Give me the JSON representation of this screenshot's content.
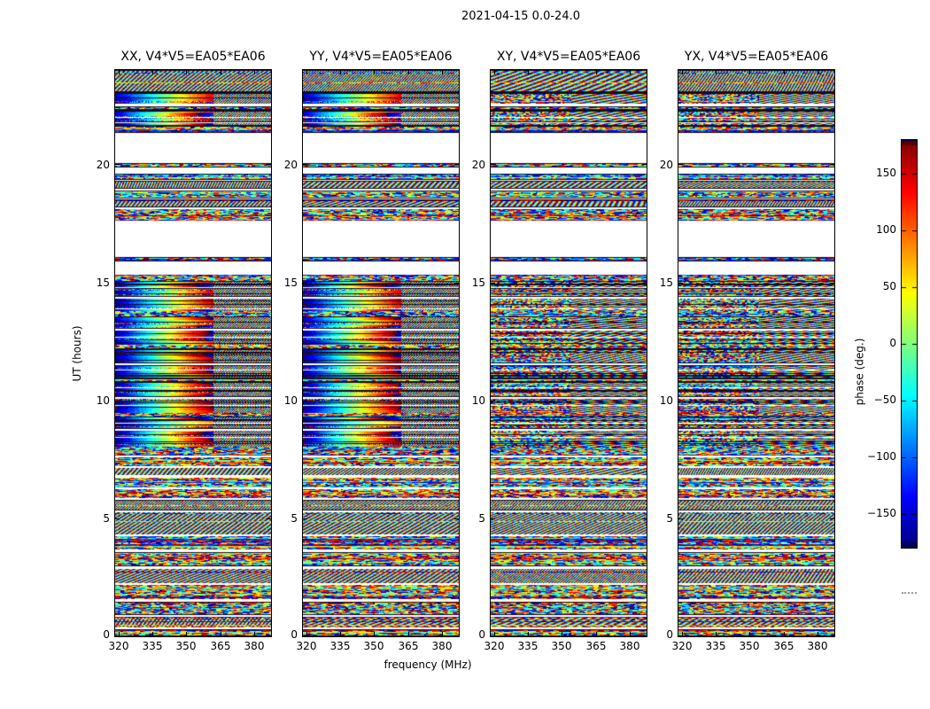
{
  "suptitle": "2021-04-15 0.0-24.0",
  "chart_data": {
    "type": "heatmap",
    "title": "2021-04-15 0.0-24.0",
    "xlabel": "frequency (MHz)",
    "ylabel": "UT (hours)",
    "x_range": [
      318.5,
      387.5
    ],
    "y_range": [
      0,
      24
    ],
    "x_ticks": [
      320,
      335,
      350,
      365,
      380
    ],
    "x_tick_labels": [
      "320",
      "335",
      "350",
      "365",
      "380"
    ],
    "y_ticks": [
      0,
      5,
      10,
      15,
      20
    ],
    "y_tick_labels": [
      "0",
      "5",
      "10",
      "15",
      "20"
    ],
    "grid": false,
    "legend": "colorbar-right",
    "panels": [
      {
        "label": "XX, V4*V5=EA05*EA06",
        "mode": "parallel"
      },
      {
        "label": "YY, V4*V5=EA05*EA06",
        "mode": "parallel"
      },
      {
        "label": "XY, V4*V5=EA05*EA06",
        "mode": "cross"
      },
      {
        "label": "YX, V4*V5=EA05*EA06",
        "mode": "cross"
      }
    ],
    "colorbar": {
      "label": "phase (deg.)",
      "colormap": "jet",
      "range": [
        -180,
        180
      ],
      "ticks": [
        150,
        100,
        50,
        0,
        -50,
        -100,
        -150
      ],
      "tick_labels": [
        "150",
        "100",
        "50",
        "0",
        "−50",
        "−100",
        "−150"
      ]
    },
    "value_units": "deg",
    "smooth_split_mhz": 362,
    "bands": [
      [
        "fringe",
        24.0,
        23.07
      ],
      [
        "dark",
        23.07,
        23.0
      ],
      [
        "smooth",
        23.0,
        22.57
      ],
      [
        "white",
        22.57,
        22.47
      ],
      [
        "noise",
        22.47,
        22.32
      ],
      [
        "dark",
        22.32,
        22.28
      ],
      [
        "smooth",
        22.28,
        21.62
      ],
      [
        "noise",
        21.62,
        21.35
      ],
      [
        "white",
        21.35,
        20.06
      ],
      [
        "noise",
        20.06,
        19.86
      ],
      [
        "white",
        19.86,
        19.62
      ],
      [
        "noise",
        19.62,
        19.36
      ],
      [
        "white",
        19.36,
        19.3
      ],
      [
        "fringe",
        19.3,
        18.97
      ],
      [
        "white",
        18.97,
        18.9
      ],
      [
        "noise",
        18.9,
        18.57
      ],
      [
        "white",
        18.57,
        18.5
      ],
      [
        "fringe",
        18.5,
        18.17
      ],
      [
        "white",
        18.17,
        18.1
      ],
      [
        "noise",
        18.1,
        17.62
      ],
      [
        "white",
        17.62,
        16.06
      ],
      [
        "noise",
        16.06,
        15.9
      ],
      [
        "white",
        15.9,
        15.32
      ],
      [
        "noise",
        15.32,
        15.06
      ],
      [
        "smooth",
        15.06,
        14.37
      ],
      [
        "white",
        14.37,
        14.3
      ],
      [
        "smooth",
        14.3,
        13.77
      ],
      [
        "noise",
        13.77,
        13.57
      ],
      [
        "smooth",
        13.57,
        13.02
      ],
      [
        "white",
        13.02,
        12.95
      ],
      [
        "smooth",
        12.95,
        12.37
      ],
      [
        "noise",
        12.37,
        12.22
      ],
      [
        "smooth",
        12.22,
        11.57
      ],
      [
        "white",
        11.57,
        11.5
      ],
      [
        "smooth",
        11.5,
        10.92
      ],
      [
        "noise",
        10.92,
        10.77
      ],
      [
        "smooth",
        10.77,
        10.14
      ],
      [
        "white",
        10.14,
        10.07
      ],
      [
        "smooth",
        10.07,
        9.47
      ],
      [
        "noise",
        9.47,
        9.32
      ],
      [
        "smooth",
        9.32,
        8.77
      ],
      [
        "white",
        8.77,
        8.7
      ],
      [
        "smooth",
        8.7,
        8.02
      ],
      [
        "noise",
        8.02,
        7.67
      ],
      [
        "white",
        7.67,
        7.57
      ],
      [
        "noise",
        7.57,
        7.22
      ],
      [
        "white",
        7.22,
        7.15
      ],
      [
        "fringe",
        7.15,
        6.82
      ],
      [
        "white",
        6.82,
        6.74
      ],
      [
        "noise",
        6.74,
        6.32
      ],
      [
        "white",
        6.32,
        6.24
      ],
      [
        "noise",
        6.24,
        5.87
      ],
      [
        "white",
        5.87,
        5.77
      ],
      [
        "fringe",
        5.77,
        5.32
      ],
      [
        "white",
        5.32,
        5.24
      ],
      [
        "fringe",
        5.24,
        4.32
      ],
      [
        "white",
        4.32,
        4.24
      ],
      [
        "noise",
        4.24,
        3.67
      ],
      [
        "white",
        3.67,
        3.57
      ],
      [
        "noise",
        3.57,
        2.97
      ],
      [
        "white",
        2.97,
        2.87
      ],
      [
        "fringe",
        2.87,
        2.27
      ],
      [
        "white",
        2.27,
        2.17
      ],
      [
        "noise",
        2.17,
        1.57
      ],
      [
        "white",
        1.57,
        1.47
      ],
      [
        "noise",
        1.47,
        0.92
      ],
      [
        "white",
        0.92,
        0.82
      ],
      [
        "fringe",
        0.82,
        0.37
      ],
      [
        "white",
        0.37,
        0.3
      ],
      [
        "noise",
        0.3,
        0.0
      ]
    ],
    "white_lines": [
      22.0,
      21.8,
      14.8,
      13.9,
      12.7,
      11.3,
      10.55,
      9.8,
      9.05,
      8.45
    ],
    "dark_lines": [
      14.9,
      14.55,
      14.1,
      13.35,
      12.6,
      12.05,
      11.15,
      10.45,
      9.9,
      9.15,
      8.55,
      8.2
    ]
  }
}
